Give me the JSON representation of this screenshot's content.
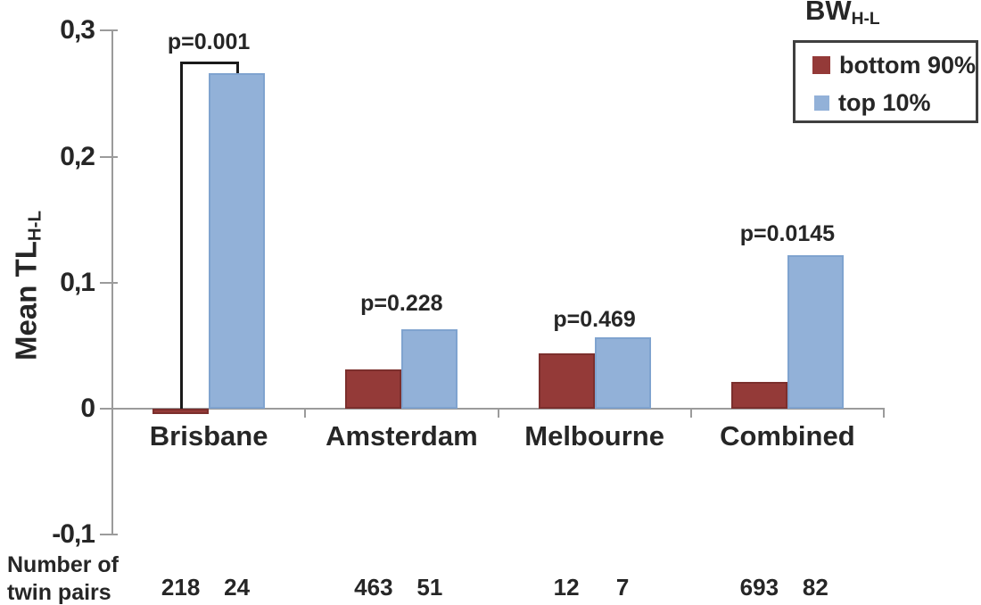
{
  "chart_data": {
    "type": "bar",
    "categories": [
      "Brisbane",
      "Amsterdam",
      "Melbourne",
      "Combined"
    ],
    "series": [
      {
        "name": "bottom 90%",
        "color": "#943a38",
        "border": "#7c2f2d",
        "values": [
          -0.004,
          0.031,
          0.044,
          0.021
        ]
      },
      {
        "name": "top 10%",
        "color": "#92b1d8",
        "border": "#7fa3cf",
        "values": [
          0.266,
          0.063,
          0.057,
          0.122
        ]
      }
    ],
    "p_values": [
      "p=0.001",
      "p=0.228",
      "p=0.469",
      "p=0.0145"
    ],
    "significance_bracket": {
      "category": "Brisbane",
      "from_series": "bottom 90%",
      "to_series": "top 10%",
      "label": "p=0.001"
    },
    "ylabel": "Mean TL",
    "ylabel_sub": "H-L",
    "ylim": [
      -0.1,
      0.3
    ],
    "yticks": [
      0.3,
      0.2,
      0.1,
      0,
      -0.1
    ],
    "ytick_labels": [
      "0,3",
      "0,2",
      "0,1",
      "0",
      "-0,1"
    ],
    "grid": false,
    "legend": {
      "title": "BW",
      "title_sub": "H-L",
      "position": "top-right",
      "entries": [
        {
          "label": "bottom 90%",
          "color": "#943a38"
        },
        {
          "label": "top 10%",
          "color": "#92b1d8"
        }
      ]
    },
    "footnote": {
      "label_line1": "Number of",
      "label_line2": "twin pairs",
      "counts": [
        [
          "218",
          "24"
        ],
        [
          "463",
          "51"
        ],
        [
          "12",
          "7"
        ],
        [
          "693",
          "82"
        ]
      ]
    }
  },
  "colors": {
    "axis": "#9b9b9b",
    "text": "#262626",
    "bracket": "#1a1a1a",
    "legend_border": "#3f3f3f"
  }
}
